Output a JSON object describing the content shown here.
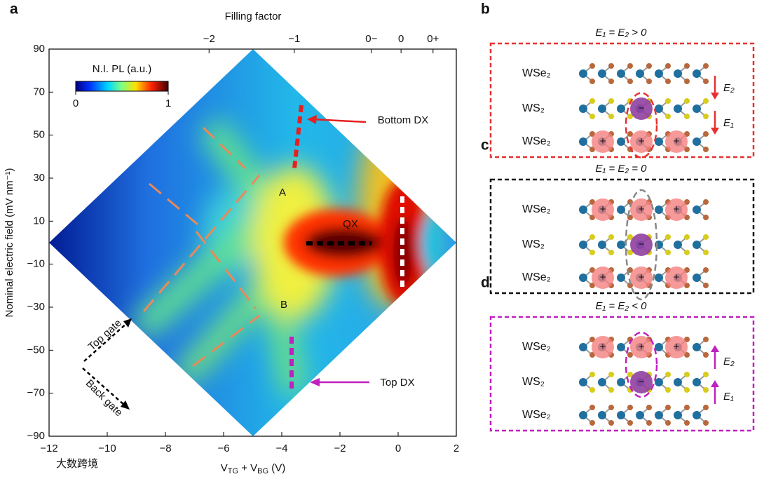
{
  "chart_data": {
    "type": "heatmap",
    "panel_label": "a",
    "x_label": [
      "V",
      "TG",
      " + V",
      "BG",
      " (V)"
    ],
    "y_label": "Nominal electric field (mV nm⁻¹)",
    "x2_label": "Filling factor",
    "xlim": [
      -12,
      2
    ],
    "xticks": [
      {
        "value": -12,
        "label": "−12"
      },
      {
        "value": -10,
        "label": "−10"
      },
      {
        "value": -8,
        "label": "−8"
      },
      {
        "value": -6,
        "label": "−6"
      },
      {
        "value": -4,
        "label": "−4"
      },
      {
        "value": -2,
        "label": "−2"
      },
      0,
      2
    ],
    "ylim": [
      -90,
      90
    ],
    "yticks": [
      90,
      70,
      50,
      30,
      10,
      {
        "value": -10,
        "label": "−10"
      },
      {
        "value": -30,
        "label": "−30"
      },
      {
        "value": -50,
        "label": "−50"
      },
      {
        "value": -70,
        "label": "−70"
      },
      {
        "value": -90,
        "label": "−90"
      }
    ],
    "x2ticks": [
      {
        "value": -6.5,
        "label": "−2"
      },
      {
        "value": -3.57,
        "label": "−1"
      },
      {
        "value": -0.92,
        "label": "0−"
      },
      {
        "value": 0.1,
        "label": "0"
      },
      {
        "value": 1.2,
        "label": "0+"
      }
    ],
    "colorbar": {
      "title": "N.I. PL (a.u.)",
      "ticks": [
        0,
        1
      ]
    },
    "annotations": {
      "A": "A",
      "B": "B",
      "QX": "QX",
      "bottom_dx": "Bottom DX",
      "top_dx": "Top DX",
      "top_gate": "Top gate",
      "back_gate": "Back gate"
    }
  },
  "panels": [
    {
      "label": "b",
      "title": "E₁ = E₂ > 0",
      "layers": [
        "WSe₂",
        "WS₂",
        "WSe₂"
      ],
      "fields": [
        "E₂",
        "E₁"
      ]
    },
    {
      "label": "c",
      "title": "E₁ = E₂ = 0",
      "layers": [
        "WSe₂",
        "WS₂",
        "WSe₂"
      ]
    },
    {
      "label": "d",
      "title": "E₁ = E₂ < 0",
      "layers": [
        "WSe₂",
        "WS₂",
        "WSe₂"
      ],
      "fields": [
        "E₂",
        "E₁"
      ]
    }
  ],
  "charges": {
    "hole": "+",
    "electron": "−"
  },
  "watermark": "大数跨境"
}
